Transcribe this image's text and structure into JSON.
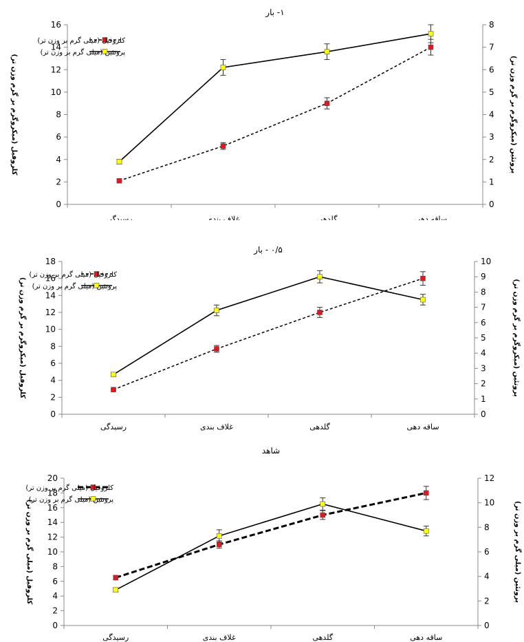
{
  "chart_data": [
    {
      "type": "line",
      "title": "۱- بار",
      "categories": [
        "رسیدگی",
        "غلاف بندی",
        "گلدهی",
        "ساقه دهی"
      ],
      "ylabel": "کلروفیل (میکروگرم بر گرم وزن تر)",
      "y2label": "پروتئین (میکروگرم بر گرم وزن تر)",
      "ylim": [
        0,
        16
      ],
      "ystep": 2,
      "y2lim": [
        0,
        8
      ],
      "y2step": 1,
      "legend_position": "top-left",
      "series": [
        {
          "name": "کلروفیل (میلی گرم بر وزن تر)",
          "axis": "left",
          "style": "dashed",
          "marker_color": "#e8141b",
          "values": [
            2.1,
            5.2,
            9.0,
            14.0
          ],
          "errors": [
            0.1,
            0.3,
            0.5,
            0.7
          ]
        },
        {
          "name": "پروتئین (میلی گرم بر وزن تر)",
          "axis": "right",
          "style": "solid",
          "marker_color": "#ffff00",
          "values": [
            1.9,
            6.1,
            6.8,
            7.6
          ],
          "errors": [
            0.1,
            0.35,
            0.35,
            0.4
          ]
        }
      ]
    },
    {
      "type": "line",
      "title": "۰/۵ - بار",
      "categories": [
        "رسیدگی",
        "غلاف بندی",
        "گلدهی",
        "ساقه دهی"
      ],
      "ylabel": "کلروفیل (میکروگرم بر گرم وزن تر)",
      "y2label": "پروتئین (میکروگرم بر گرم وزن تر)",
      "ylim": [
        0,
        18
      ],
      "ystep": 2,
      "y2lim": [
        0,
        10
      ],
      "y2step": 1,
      "legend_position": "top-left",
      "series": [
        {
          "name": "کلروفیل (میلی گرم بر وزن تر)",
          "axis": "left",
          "style": "dashed",
          "marker_color": "#e8141b",
          "values": [
            2.9,
            7.7,
            12.0,
            16.0
          ],
          "errors": [
            0.1,
            0.4,
            0.6,
            0.8
          ]
        },
        {
          "name": "پروتئین (میلی گرم بر وزن تر)",
          "axis": "right",
          "style": "solid",
          "marker_color": "#ffff00",
          "values": [
            2.6,
            6.8,
            9.0,
            7.5
          ],
          "errors": [
            0.1,
            0.35,
            0.4,
            0.35
          ]
        }
      ]
    },
    {
      "type": "line",
      "title": "شاهد",
      "categories": [
        "رسیدگی",
        "غلاف بندی",
        "گلدهی",
        "ساقه دهی"
      ],
      "ylabel": "کلروفیل (میلی گرم بر وزن تر)",
      "y2label": "پروتئین (میلی گرم بر وزن تر)",
      "ylim": [
        0,
        20
      ],
      "ystep": 2,
      "y2lim": [
        0,
        12
      ],
      "y2step": 2,
      "legend_position": "top-left",
      "series": [
        {
          "name": "کلروفیل (میلی گرم بر وزن تر)",
          "axis": "left",
          "style": "dashed-bold",
          "marker_color": "#e8141b",
          "values": [
            6.5,
            11.0,
            15.0,
            18.0
          ],
          "errors": [
            0.3,
            0.5,
            0.6,
            0.9
          ]
        },
        {
          "name": "پروتئین (میلی گرم بر وزن تر)",
          "axis": "right",
          "style": "solid",
          "marker_color": "#ffff00",
          "values": [
            2.9,
            7.3,
            9.9,
            7.7
          ],
          "errors": [
            0.15,
            0.5,
            0.5,
            0.4
          ]
        }
      ]
    }
  ]
}
